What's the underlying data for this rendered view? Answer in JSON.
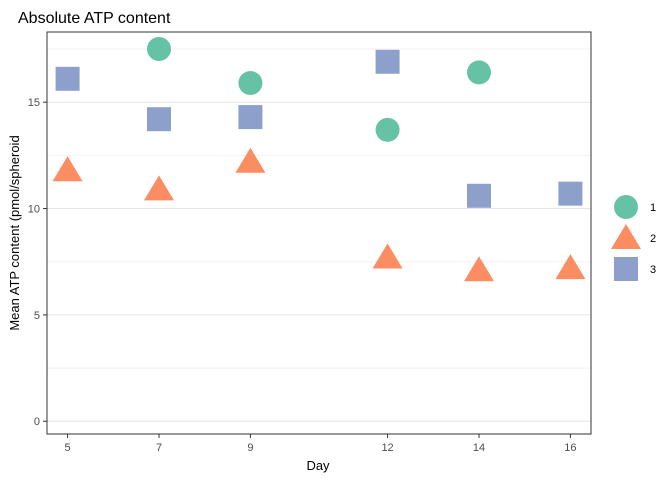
{
  "chart_data": {
    "type": "scatter",
    "title": "Absolute ATP content",
    "xlabel": "Day",
    "ylabel": "Mean ATP content (pmol/spheroid",
    "x_ticks": [
      5,
      7,
      9,
      12,
      14,
      16
    ],
    "y_ticks": [
      0,
      5,
      10,
      15
    ],
    "xlim": [
      4.55,
      16.45
    ],
    "ylim": [
      -0.6,
      18.3
    ],
    "grid": true,
    "legend_position": "right",
    "series": [
      {
        "name": "1",
        "shape": "circle",
        "color": "#66c2a5",
        "points": [
          {
            "x": 7,
            "y": 17.5
          },
          {
            "x": 9,
            "y": 15.9
          },
          {
            "x": 12,
            "y": 13.7
          },
          {
            "x": 14,
            "y": 16.4
          }
        ]
      },
      {
        "name": "2",
        "shape": "triangle",
        "color": "#fc8d62",
        "points": [
          {
            "x": 5,
            "y": 11.8
          },
          {
            "x": 7,
            "y": 10.9
          },
          {
            "x": 9,
            "y": 12.2
          },
          {
            "x": 12,
            "y": 7.7
          },
          {
            "x": 14,
            "y": 7.1
          },
          {
            "x": 16,
            "y": 7.2
          }
        ]
      },
      {
        "name": "3",
        "shape": "square",
        "color": "#8da0cb",
        "points": [
          {
            "x": 5,
            "y": 16.1
          },
          {
            "x": 7,
            "y": 14.2
          },
          {
            "x": 9,
            "y": 14.3
          },
          {
            "x": 12,
            "y": 16.9
          },
          {
            "x": 14,
            "y": 10.6
          },
          {
            "x": 16,
            "y": 10.7
          }
        ]
      }
    ]
  }
}
